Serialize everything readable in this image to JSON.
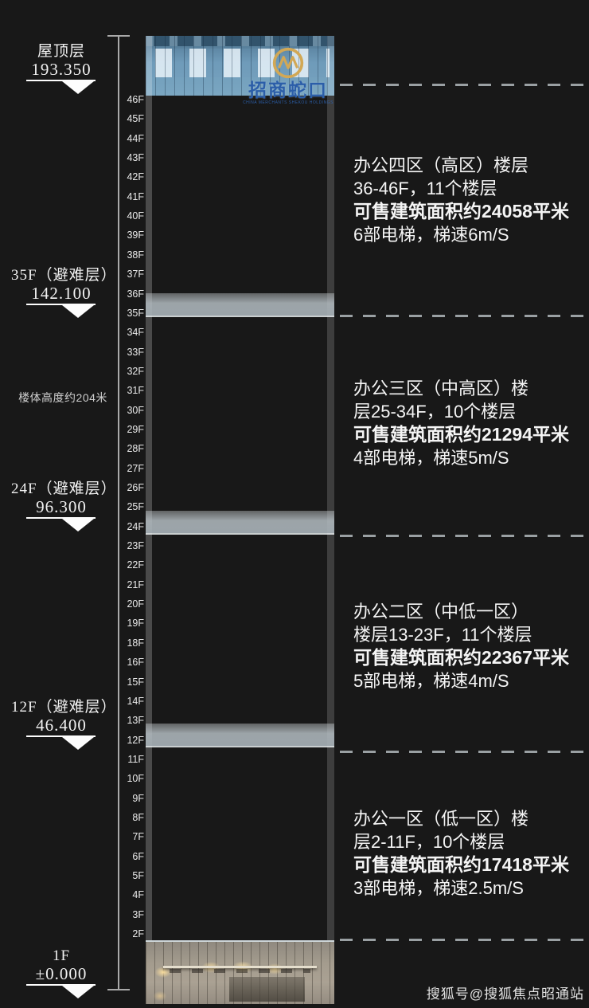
{
  "page": {
    "background_color": "#181818",
    "watermark": "搜狐号@搜狐焦点昭通站"
  },
  "dimension": {
    "height_note": "楼体高度约204米"
  },
  "levels": [
    {
      "floor": "屋顶层",
      "elevation": "193.350"
    },
    {
      "floor": "35F（避难层）",
      "elevation": "142.100"
    },
    {
      "floor": "24F（避难层）",
      "elevation": "96.300"
    },
    {
      "floor": "12F（避难层）",
      "elevation": "46.400"
    },
    {
      "floor": "1F",
      "elevation": "±0.000"
    }
  ],
  "building": {
    "brand_name": "招商蛇口",
    "brand_subtext": "CHINA MERCHANTS SHEKOU HOLDINGS",
    "floors": [
      "46F",
      "45F",
      "44F",
      "43F",
      "42F",
      "41F",
      "40F",
      "39F",
      "38F",
      "37F",
      "36F",
      "35F",
      "34F",
      "33F",
      "32F",
      "31F",
      "30F",
      "29F",
      "28F",
      "27F",
      "26F",
      "25F",
      "24F",
      "23F",
      "22F",
      "21F",
      "20F",
      "19F",
      "18F",
      "16F",
      "15F",
      "14F",
      "13F",
      "12F",
      "11F",
      "10F",
      "9F",
      "8F",
      "7F",
      "6F",
      "5F",
      "4F",
      "3F",
      "2F"
    ],
    "refuge_floors": [
      "35F",
      "24F",
      "12F"
    ]
  },
  "zones": [
    {
      "title": "办公四区（高区）楼层",
      "range": "36-46F，11个楼层",
      "area": "可售建筑面积约24058平米",
      "elevators": "6部电梯，梯速6m/S"
    },
    {
      "title": "办公三区（中高区）楼",
      "range": "层25-34F，10个楼层",
      "area": "可售建筑面积约21294平米",
      "elevators": "4部电梯，梯速5m/S"
    },
    {
      "title": "办公二区（中低一区）",
      "range": "楼层13-23F，11个楼层",
      "area": "可售建筑面积约22367平米",
      "elevators": "5部电梯，梯速4m/S"
    },
    {
      "title": "办公一区（低一区）楼",
      "range": "层2-11F，10个楼层",
      "area": "可售建筑面积约17418平米",
      "elevators": "3部电梯，梯速2.5m/S"
    }
  ],
  "colors": {
    "brand_blue": "#2b5ea9",
    "brand_gold": "#d2a855",
    "tower_glass": "#699abd",
    "refuge_band": "#aeb8be",
    "podium": "#a49c8e",
    "text": "#f5f5f5",
    "divider": "#9aa0a3"
  }
}
